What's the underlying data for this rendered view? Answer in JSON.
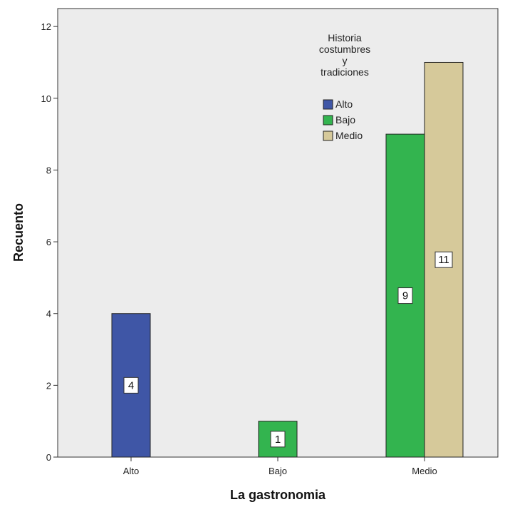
{
  "chart_data": {
    "type": "bar",
    "xlabel": "La gastronomia",
    "ylabel": "Recuento",
    "categories": [
      "Alto",
      "Bajo",
      "Medio"
    ],
    "ylim": [
      0,
      12.5
    ],
    "yticks": [
      0,
      2,
      4,
      6,
      8,
      10,
      12
    ],
    "grid": false,
    "legend": {
      "title_lines": [
        "Historia",
        "costumbres",
        "y",
        "tradiciones"
      ],
      "placement": "top-right"
    },
    "series": [
      {
        "name": "Alto",
        "color": "#3f56a6",
        "values": [
          4,
          null,
          null
        ]
      },
      {
        "name": "Bajo",
        "color": "#33b44f",
        "values": [
          null,
          1,
          9
        ]
      },
      {
        "name": "Medio",
        "color": "#d6c99a",
        "values": [
          null,
          null,
          11
        ]
      }
    ]
  }
}
